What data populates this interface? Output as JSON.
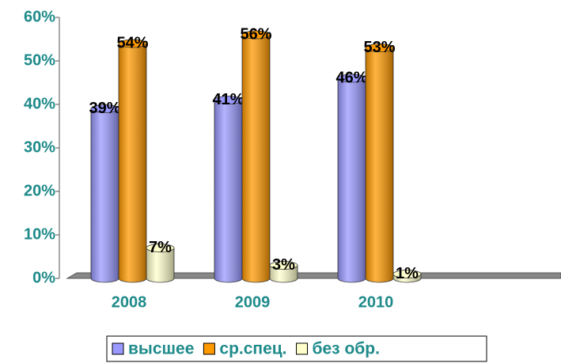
{
  "chart_data": {
    "type": "bar",
    "categories": [
      "2008",
      "2009",
      "2010",
      null
    ],
    "series": [
      {
        "name": "высшее",
        "color": "#9999ff",
        "values": [
          39,
          41,
          46,
          null
        ],
        "value_labels": [
          "39%",
          "41%",
          "46%",
          null
        ]
      },
      {
        "name": "ср.спец.",
        "color": "#ff9900",
        "values": [
          54,
          56,
          53,
          null
        ],
        "value_labels": [
          "54%",
          "56%",
          "53%",
          null
        ]
      },
      {
        "name": "без обр.",
        "color": "#ffffcc",
        "values": [
          7,
          3,
          1,
          null
        ],
        "value_labels": [
          "7%",
          "3%",
          "1%",
          null
        ]
      }
    ],
    "ylim": [
      0,
      60
    ],
    "yticks": [
      {
        "value": 0,
        "label": "0%"
      },
      {
        "value": 10,
        "label": "10%"
      },
      {
        "value": 20,
        "label": "20%"
      },
      {
        "value": 30,
        "label": "30%"
      },
      {
        "value": 40,
        "label": "40%"
      },
      {
        "value": 50,
        "label": "50%"
      },
      {
        "value": 60,
        "label": "60%"
      }
    ],
    "legend": "bottom"
  }
}
